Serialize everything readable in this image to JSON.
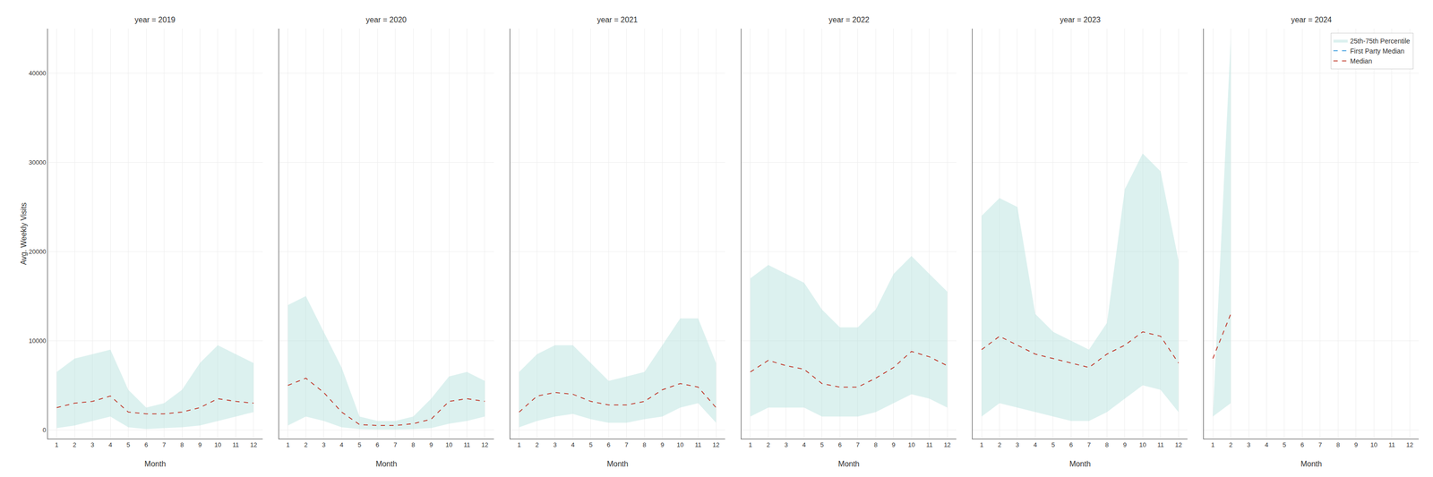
{
  "chart_data": [
    {
      "type": "line",
      "title": "year = 2019",
      "xlabel": "Month",
      "ylabel": "Avg. Weekly Visits",
      "x": [
        1,
        2,
        3,
        4,
        5,
        6,
        7,
        8,
        9,
        10,
        11,
        12
      ],
      "xlim": [
        0.5,
        12.5
      ],
      "xticks": [
        1,
        2,
        3,
        4,
        5,
        6,
        7,
        8,
        9,
        10,
        11,
        12
      ],
      "ylim": [
        -1000,
        45000
      ],
      "yticks": [
        0,
        10000,
        20000,
        30000,
        40000
      ],
      "grid": true,
      "series": [
        {
          "name": "Median",
          "color": "#c0392b",
          "line_style": "dashed",
          "values": [
            2500,
            3000,
            3200,
            3800,
            2000,
            1800,
            1800,
            2000,
            2500,
            3500,
            3200,
            3000
          ]
        },
        {
          "name": "25th-75th Percentile",
          "type": "band",
          "color": "#b2dfdb",
          "lower": [
            200,
            500,
            1000,
            1500,
            300,
            100,
            200,
            300,
            500,
            1000,
            1500,
            2000
          ],
          "upper": [
            6500,
            8000,
            8500,
            9000,
            4500,
            2500,
            3000,
            4500,
            7500,
            9500,
            8500,
            7500
          ]
        }
      ]
    },
    {
      "type": "line",
      "title": "year = 2020",
      "xlabel": "Month",
      "x": [
        1,
        2,
        3,
        4,
        5,
        6,
        7,
        8,
        9,
        10,
        11,
        12
      ],
      "xlim": [
        0.5,
        12.5
      ],
      "xticks": [
        1,
        2,
        3,
        4,
        5,
        6,
        7,
        8,
        9,
        10,
        11,
        12
      ],
      "ylim": [
        -1000,
        45000
      ],
      "yticks": [
        0,
        10000,
        20000,
        30000,
        40000
      ],
      "grid": true,
      "tick_labels": "x",
      "series": [
        {
          "name": "Median",
          "color": "#c0392b",
          "line_style": "dashed",
          "values": [
            5000,
            5800,
            4200,
            2000,
            600,
            500,
            500,
            700,
            1200,
            3200,
            3500,
            3200
          ]
        },
        {
          "name": "25th-75th Percentile",
          "type": "band",
          "color": "#b2dfdb",
          "lower": [
            500,
            1500,
            1000,
            300,
            100,
            50,
            50,
            100,
            200,
            700,
            1000,
            1500
          ],
          "upper": [
            14000,
            15000,
            11000,
            7000,
            1500,
            1000,
            1000,
            1500,
            3500,
            6000,
            6500,
            5500
          ]
        }
      ]
    },
    {
      "type": "line",
      "title": "year = 2021",
      "xlabel": "Month",
      "x": [
        1,
        2,
        3,
        4,
        5,
        6,
        7,
        8,
        9,
        10,
        11,
        12
      ],
      "xlim": [
        0.5,
        12.5
      ],
      "xticks": [
        1,
        2,
        3,
        4,
        5,
        6,
        7,
        8,
        9,
        10,
        11,
        12
      ],
      "ylim": [
        -1000,
        45000
      ],
      "yticks": [
        0,
        10000,
        20000,
        30000,
        40000
      ],
      "grid": true,
      "tick_labels": "x",
      "series": [
        {
          "name": "Median",
          "color": "#c0392b",
          "line_style": "dashed",
          "values": [
            2000,
            3800,
            4200,
            4000,
            3200,
            2800,
            2800,
            3200,
            4500,
            5200,
            4800,
            2500
          ]
        },
        {
          "name": "25th-75th Percentile",
          "type": "band",
          "color": "#b2dfdb",
          "lower": [
            300,
            1000,
            1500,
            1800,
            1200,
            800,
            800,
            1200,
            1500,
            2500,
            3000,
            800
          ],
          "upper": [
            6500,
            8500,
            9500,
            9500,
            7500,
            5500,
            6000,
            6500,
            9500,
            12500,
            12500,
            7500
          ]
        }
      ]
    },
    {
      "type": "line",
      "title": "year = 2022",
      "xlabel": "Month",
      "x": [
        1,
        2,
        3,
        4,
        5,
        6,
        7,
        8,
        9,
        10,
        11,
        12
      ],
      "xlim": [
        0.5,
        12.5
      ],
      "xticks": [
        1,
        2,
        3,
        4,
        5,
        6,
        7,
        8,
        9,
        10,
        11,
        12
      ],
      "ylim": [
        -1000,
        45000
      ],
      "yticks": [
        0,
        10000,
        20000,
        30000,
        40000
      ],
      "grid": true,
      "tick_labels": "x",
      "series": [
        {
          "name": "Median",
          "color": "#c0392b",
          "line_style": "dashed",
          "values": [
            6500,
            7800,
            7200,
            6800,
            5200,
            4800,
            4800,
            5800,
            7000,
            8800,
            8200,
            7200
          ]
        },
        {
          "name": "25th-75th Percentile",
          "type": "band",
          "color": "#b2dfdb",
          "lower": [
            1500,
            2500,
            2500,
            2500,
            1500,
            1500,
            1500,
            2000,
            3000,
            4000,
            3500,
            2500
          ],
          "upper": [
            17000,
            18500,
            17500,
            16500,
            13500,
            11500,
            11500,
            13500,
            17500,
            19500,
            17500,
            15500
          ]
        }
      ]
    },
    {
      "type": "line",
      "title": "year = 2023",
      "xlabel": "Month",
      "x": [
        1,
        2,
        3,
        4,
        5,
        6,
        7,
        8,
        9,
        10,
        11,
        12
      ],
      "xlim": [
        0.5,
        12.5
      ],
      "xticks": [
        1,
        2,
        3,
        4,
        5,
        6,
        7,
        8,
        9,
        10,
        11,
        12
      ],
      "ylim": [
        -1000,
        45000
      ],
      "yticks": [
        0,
        10000,
        20000,
        30000,
        40000
      ],
      "grid": true,
      "tick_labels": "x",
      "series": [
        {
          "name": "Median",
          "color": "#c0392b",
          "line_style": "dashed",
          "values": [
            9000,
            10500,
            9500,
            8500,
            8000,
            7500,
            7000,
            8500,
            9500,
            11000,
            10500,
            7500
          ]
        },
        {
          "name": "25th-75th Percentile",
          "type": "band",
          "color": "#b2dfdb",
          "lower": [
            1500,
            3000,
            2500,
            2000,
            1500,
            1000,
            1000,
            2000,
            3500,
            5000,
            4500,
            2000
          ],
          "upper": [
            24000,
            26000,
            25000,
            13000,
            11000,
            10000,
            9000,
            12000,
            27000,
            31000,
            29000,
            19000
          ]
        }
      ]
    },
    {
      "type": "line",
      "title": "year = 2024",
      "xlabel": "Month",
      "x": [
        1,
        2,
        3,
        4,
        5,
        6,
        7,
        8,
        9,
        10,
        11,
        12
      ],
      "xlim": [
        0.5,
        12.5
      ],
      "xticks": [
        1,
        2,
        3,
        4,
        5,
        6,
        7,
        8,
        9,
        10,
        11,
        12
      ],
      "ylim": [
        -1000,
        45000
      ],
      "yticks": [
        0,
        10000,
        20000,
        30000,
        40000
      ],
      "grid": true,
      "tick_labels": "x",
      "legend": "upper right",
      "series": [
        {
          "name": "Median",
          "color": "#c0392b",
          "line_style": "dashed",
          "values": [
            8000,
            13000,
            null,
            null,
            null,
            null,
            null,
            null,
            null,
            null,
            null,
            null
          ]
        },
        {
          "name": "First Party Median",
          "color": "#3498db",
          "line_style": "dashed",
          "values": [
            null,
            null,
            null,
            null,
            null,
            null,
            null,
            null,
            null,
            null,
            null,
            null
          ]
        },
        {
          "name": "25th-75th Percentile",
          "type": "band",
          "color": "#b2dfdb",
          "lower": [
            1500,
            3000,
            null,
            null,
            null,
            null,
            null,
            null,
            null,
            null,
            null,
            null
          ],
          "upper": [
            1500,
            44000,
            null,
            null,
            null,
            null,
            null,
            null,
            null,
            null,
            null,
            null
          ]
        }
      ]
    }
  ]
}
